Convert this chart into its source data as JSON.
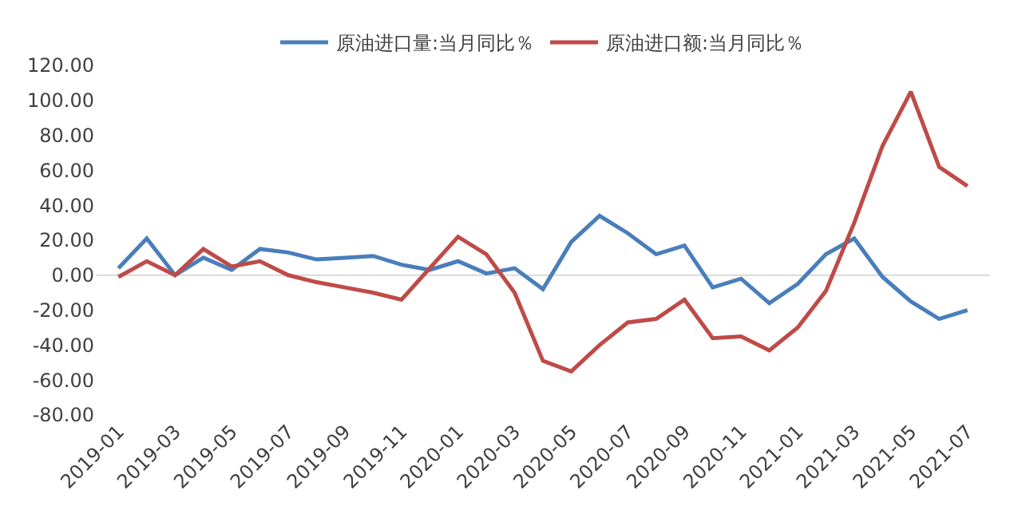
{
  "chart_data": {
    "type": "line",
    "categories": [
      "2019-01",
      null,
      "2019-03",
      null,
      "2019-05",
      null,
      "2019-07",
      null,
      "2019-09",
      null,
      "2019-11",
      null,
      "2020-01",
      null,
      "2020-03",
      null,
      "2020-05",
      null,
      "2020-07",
      null,
      "2020-09",
      null,
      "2020-11",
      null,
      "2021-01",
      null,
      "2021-03",
      null,
      "2021-05",
      null,
      "2021-07"
    ],
    "series": [
      {
        "name": "原油进口量:当月同比％",
        "color": "#4a7ebb",
        "values": [
          4,
          21,
          0,
          10,
          3,
          15,
          13,
          9,
          10,
          11,
          6,
          3,
          8,
          1,
          4,
          -8,
          19,
          34,
          24,
          12,
          17,
          -7,
          -2,
          -16,
          -5,
          12,
          21,
          -1,
          -15,
          -25,
          -20
        ]
      },
      {
        "name": "原油进口额:当月同比％",
        "color": "#be4b48",
        "values": [
          -1,
          8,
          0,
          15,
          5,
          8,
          0,
          -4,
          -7,
          -10,
          -14,
          4,
          22,
          12,
          -10,
          -49,
          -55,
          -40,
          -27,
          -25,
          -14,
          -36,
          -35,
          -43,
          -30,
          -9,
          30,
          74,
          105,
          62,
          51
        ]
      }
    ],
    "ylim": [
      -80,
      120
    ],
    "yticks": [
      {
        "value": -80,
        "label": "-80.00"
      },
      {
        "value": -60,
        "label": "-60.00"
      },
      {
        "value": -40,
        "label": "-40.00"
      },
      {
        "value": -20,
        "label": "-20.00"
      },
      {
        "value": 0,
        "label": "0.00"
      },
      {
        "value": 20,
        "label": "20.00"
      },
      {
        "value": 40,
        "label": "40.00"
      },
      {
        "value": 60,
        "label": "60.00"
      },
      {
        "value": 80,
        "label": "80.00"
      },
      {
        "value": 100,
        "label": "100.00"
      },
      {
        "value": 120,
        "label": "120.00"
      }
    ],
    "ref_lines": [
      {
        "axis": "y",
        "value": 0,
        "color": "#d9d9d9"
      }
    ],
    "grid": false,
    "legend": "top",
    "marker": "none",
    "line_style": "solid"
  }
}
